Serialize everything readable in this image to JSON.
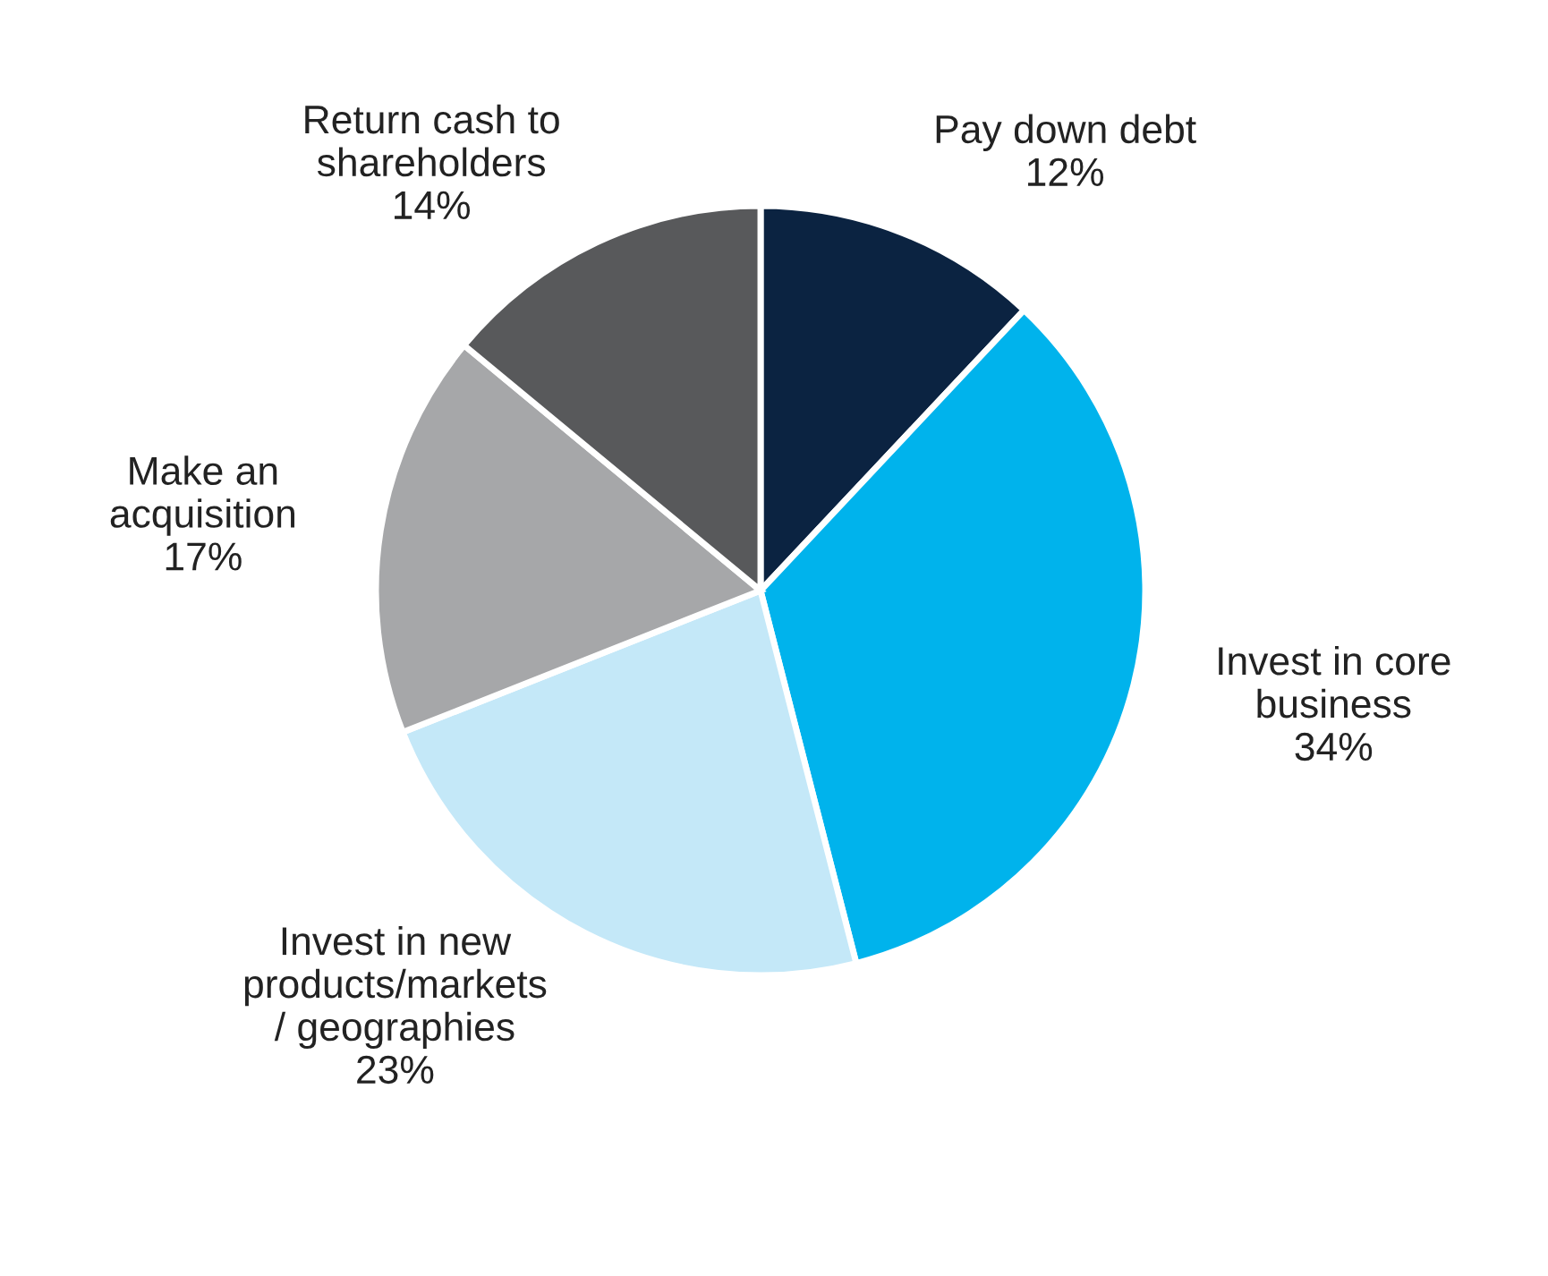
{
  "chart_data": {
    "type": "pie",
    "categories": [
      "Pay down debt",
      "Invest in core\nbusiness",
      "Invest in new\nproducts/markets\n/ geographies",
      "Make an\nacquisition",
      "Return cash to\nshareholders"
    ],
    "values": [
      12,
      34,
      23,
      17,
      14
    ],
    "colors": [
      "#0b2341",
      "#00b3ec",
      "#c4e8f8",
      "#a6a7a9",
      "#58595b"
    ],
    "value_labels": [
      "12%",
      "34%",
      "23%",
      "17%",
      "14%"
    ]
  }
}
